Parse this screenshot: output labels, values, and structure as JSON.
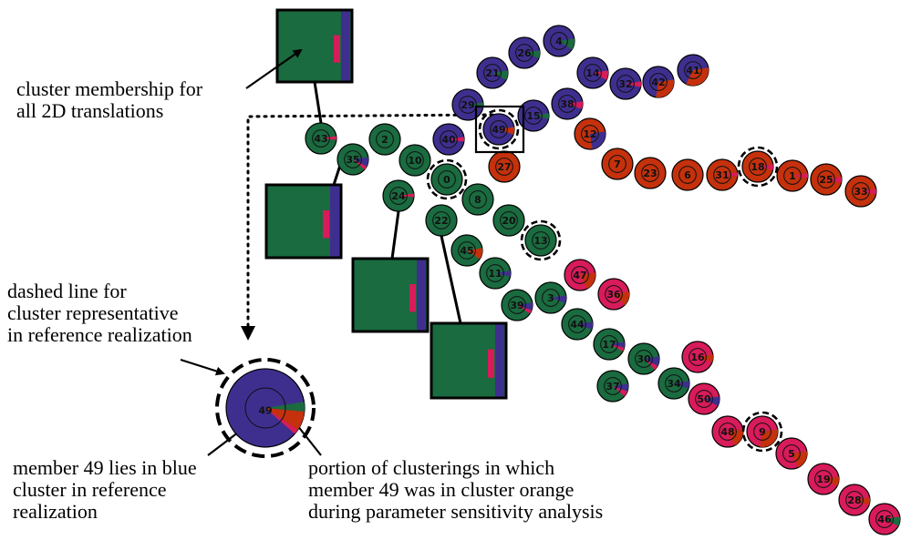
{
  "colors": {
    "blue": "#3e2f8f",
    "green": "#1a6b3f",
    "orange": "#c4310c",
    "pink": "#d81b5a"
  },
  "annotations": {
    "cluster_membership": "cluster membership for\nall 2D translations",
    "dashed_line": "dashed line for\ncluster representative\nin reference realization",
    "member_blue": "member 49 lies in blue\ncluster in reference\nrealization",
    "portion": "portion of clusterings in which\nmember 49 was in cluster orange\nduring parameter sensitivity analysis"
  },
  "zoom_node": {
    "id": "49",
    "color": "blue",
    "slices": [
      {
        "color": "green",
        "frac": 0.04
      },
      {
        "color": "orange",
        "frac": 0.08
      },
      {
        "color": "pink",
        "frac": 0.02
      }
    ]
  },
  "nodes": [
    {
      "id": "4",
      "color": "blue",
      "slices": [
        {
          "color": "green",
          "frac": 0.12
        }
      ]
    },
    {
      "id": "26",
      "color": "blue",
      "slices": [
        {
          "color": "green",
          "frac": 0.08
        }
      ]
    },
    {
      "id": "21",
      "color": "blue",
      "slices": [
        {
          "color": "green",
          "frac": 0.1
        }
      ]
    },
    {
      "id": "14",
      "color": "blue",
      "slices": [
        {
          "color": "pink",
          "frac": 0.1
        }
      ]
    },
    {
      "id": "32",
      "color": "blue",
      "slices": [
        {
          "color": "pink",
          "frac": 0.06
        }
      ]
    },
    {
      "id": "42",
      "color": "blue",
      "slices": [
        {
          "color": "orange",
          "frac": 0.3
        }
      ]
    },
    {
      "id": "41",
      "color": "blue",
      "slices": [
        {
          "color": "orange",
          "frac": 0.35
        }
      ]
    },
    {
      "id": "29",
      "color": "blue",
      "slices": [
        {
          "color": "green",
          "frac": 0.06
        }
      ]
    },
    {
      "id": "38",
      "color": "blue",
      "slices": [
        {
          "color": "pink",
          "frac": 0.08
        }
      ]
    },
    {
      "id": "15",
      "color": "blue",
      "slices": [
        {
          "color": "green",
          "frac": 0.06
        }
      ]
    },
    {
      "id": "49",
      "color": "blue",
      "rep": true,
      "slices": [
        {
          "color": "orange",
          "frac": 0.08
        }
      ]
    },
    {
      "id": "40",
      "color": "blue",
      "slices": [
        {
          "color": "pink",
          "frac": 0.05
        }
      ]
    },
    {
      "id": "12",
      "color": "orange",
      "slices": [
        {
          "color": "blue",
          "frac": 0.25
        }
      ]
    },
    {
      "id": "27",
      "color": "orange",
      "slices": []
    },
    {
      "id": "7",
      "color": "orange",
      "slices": []
    },
    {
      "id": "23",
      "color": "orange",
      "slices": []
    },
    {
      "id": "6",
      "color": "orange",
      "slices": []
    },
    {
      "id": "31",
      "color": "orange",
      "slices": [
        {
          "color": "pink",
          "frac": 0.04
        }
      ]
    },
    {
      "id": "18",
      "color": "orange",
      "rep": true,
      "slices": [
        {
          "color": "pink",
          "frac": 0.06
        }
      ]
    },
    {
      "id": "1",
      "color": "orange",
      "slices": [
        {
          "color": "pink",
          "frac": 0.05
        }
      ]
    },
    {
      "id": "25",
      "color": "orange",
      "slices": [
        {
          "color": "pink",
          "frac": 0.06
        }
      ]
    },
    {
      "id": "33",
      "color": "orange",
      "slices": [
        {
          "color": "pink",
          "frac": 0.06
        }
      ]
    },
    {
      "id": "43",
      "color": "green",
      "slices": [
        {
          "color": "pink",
          "frac": 0.04
        }
      ]
    },
    {
      "id": "2",
      "color": "green",
      "slices": []
    },
    {
      "id": "35",
      "color": "green",
      "slices": [
        {
          "color": "blue",
          "frac": 0.1
        },
        {
          "color": "pink",
          "frac": 0.04
        }
      ]
    },
    {
      "id": "10",
      "color": "green",
      "slices": []
    },
    {
      "id": "0",
      "color": "green",
      "rep": true,
      "slices": []
    },
    {
      "id": "24",
      "color": "green",
      "slices": [
        {
          "color": "pink",
          "frac": 0.04
        }
      ]
    },
    {
      "id": "8",
      "color": "green",
      "slices": []
    },
    {
      "id": "22",
      "color": "green",
      "slices": []
    },
    {
      "id": "20",
      "color": "green",
      "slices": []
    },
    {
      "id": "13",
      "color": "green",
      "rep": true,
      "slices": []
    },
    {
      "id": "45",
      "color": "green",
      "slices": [
        {
          "color": "orange",
          "frac": 0.12
        }
      ]
    },
    {
      "id": "11",
      "color": "green",
      "slices": [
        {
          "color": "blue",
          "frac": 0.06
        }
      ]
    },
    {
      "id": "47",
      "color": "pink",
      "slices": [
        {
          "color": "orange",
          "frac": 0.2
        }
      ]
    },
    {
      "id": "36",
      "color": "pink",
      "slices": [
        {
          "color": "orange",
          "frac": 0.15
        }
      ]
    },
    {
      "id": "39",
      "color": "green",
      "slices": [
        {
          "color": "blue",
          "frac": 0.08
        },
        {
          "color": "pink",
          "frac": 0.04
        }
      ]
    },
    {
      "id": "3",
      "color": "green",
      "slices": [
        {
          "color": "blue",
          "frac": 0.08
        }
      ]
    },
    {
      "id": "44",
      "color": "green",
      "slices": [
        {
          "color": "blue",
          "frac": 0.08
        }
      ]
    },
    {
      "id": "17",
      "color": "green",
      "slices": [
        {
          "color": "blue",
          "frac": 0.06
        },
        {
          "color": "pink",
          "frac": 0.04
        }
      ]
    },
    {
      "id": "30",
      "color": "green",
      "slices": [
        {
          "color": "blue",
          "frac": 0.1
        },
        {
          "color": "pink",
          "frac": 0.05
        }
      ]
    },
    {
      "id": "16",
      "color": "pink",
      "slices": [
        {
          "color": "orange",
          "frac": 0.08
        }
      ]
    },
    {
      "id": "37",
      "color": "green",
      "slices": [
        {
          "color": "blue",
          "frac": 0.08
        },
        {
          "color": "pink",
          "frac": 0.06
        }
      ]
    },
    {
      "id": "34",
      "color": "green",
      "slices": [
        {
          "color": "blue",
          "frac": 0.08
        }
      ]
    },
    {
      "id": "50",
      "color": "pink",
      "slices": [
        {
          "color": "blue",
          "frac": 0.1
        }
      ]
    },
    {
      "id": "48",
      "color": "pink",
      "slices": [
        {
          "color": "orange",
          "frac": 0.2
        }
      ]
    },
    {
      "id": "9",
      "color": "pink",
      "rep": true,
      "slices": [
        {
          "color": "orange",
          "frac": 0.3
        }
      ]
    },
    {
      "id": "5",
      "color": "pink",
      "slices": [
        {
          "color": "orange",
          "frac": 0.2
        }
      ]
    },
    {
      "id": "19",
      "color": "pink",
      "slices": [
        {
          "color": "orange",
          "frac": 0.1
        }
      ]
    },
    {
      "id": "28",
      "color": "pink",
      "slices": [
        {
          "color": "orange",
          "frac": 0.08
        }
      ]
    },
    {
      "id": "46",
      "color": "pink",
      "slices": [
        {
          "color": "green",
          "frac": 0.1
        }
      ]
    }
  ],
  "thumbnails": [
    {
      "id": "thumb-top",
      "attached_to": "43"
    },
    {
      "id": "thumb-left",
      "attached_to": "35"
    },
    {
      "id": "thumb-mid",
      "attached_to": "24"
    },
    {
      "id": "thumb-bottom",
      "attached_to": "22"
    }
  ]
}
